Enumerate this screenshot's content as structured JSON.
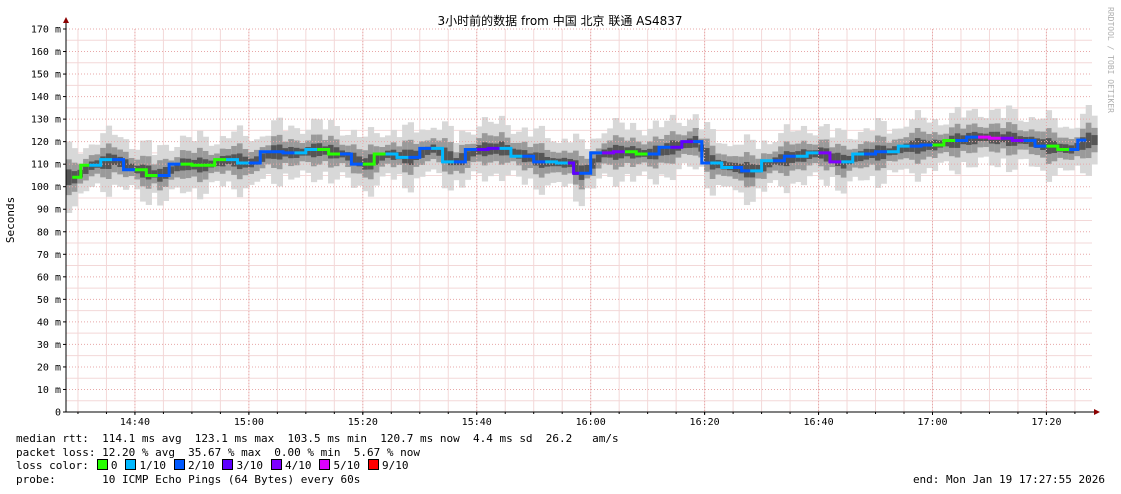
{
  "chart_data": {
    "type": "line",
    "title": "3小时前的数据 from 中国 北京 联通 AS4837",
    "ylabel": "Seconds",
    "watermark": "RRDTOOL / TOBI OETIKER",
    "ylim": [
      0,
      170
    ],
    "y_ticks": [
      "0",
      "10 m",
      "20 m",
      "30 m",
      "40 m",
      "50 m",
      "60 m",
      "70 m",
      "80 m",
      "90 m",
      "100 m",
      "110 m",
      "120 m",
      "130 m",
      "140 m",
      "150 m",
      "160 m",
      "170 m"
    ],
    "x_ticks": [
      "14:40",
      "15:00",
      "15:20",
      "15:40",
      "16:00",
      "16:20",
      "16:40",
      "17:00",
      "17:20"
    ],
    "grid": true,
    "median_rtt_ms": [
      {
        "time": "14:29",
        "value": 104.2,
        "loss": "0"
      },
      {
        "time": "14:32",
        "value": 109.5,
        "loss": "1/10"
      },
      {
        "time": "14:36",
        "value": 112.0,
        "loss": "2/10"
      },
      {
        "time": "14:40",
        "value": 107.5,
        "loss": "0"
      },
      {
        "time": "14:44",
        "value": 105.0,
        "loss": "2/10"
      },
      {
        "time": "14:48",
        "value": 110.0,
        "loss": "0"
      },
      {
        "time": "14:52",
        "value": 109.5,
        "loss": "0"
      },
      {
        "time": "14:56",
        "value": 112.0,
        "loss": "1/10"
      },
      {
        "time": "15:00",
        "value": 110.5,
        "loss": "2/10"
      },
      {
        "time": "15:04",
        "value": 115.5,
        "loss": "2/10"
      },
      {
        "time": "15:08",
        "value": 115.0,
        "loss": "1/10"
      },
      {
        "time": "15:12",
        "value": 116.5,
        "loss": "0"
      },
      {
        "time": "15:16",
        "value": 114.5,
        "loss": "2/10"
      },
      {
        "time": "15:20",
        "value": 110.0,
        "loss": "0"
      },
      {
        "time": "15:24",
        "value": 114.5,
        "loss": "1/10"
      },
      {
        "time": "15:28",
        "value": 113.0,
        "loss": "2/10"
      },
      {
        "time": "15:32",
        "value": 117.0,
        "loss": "1/10"
      },
      {
        "time": "15:36",
        "value": 111.0,
        "loss": "2/10"
      },
      {
        "time": "15:40",
        "value": 116.5,
        "loss": "3/10"
      },
      {
        "time": "15:44",
        "value": 117.0,
        "loss": "1/10"
      },
      {
        "time": "15:48",
        "value": 113.5,
        "loss": "2/10"
      },
      {
        "time": "15:52",
        "value": 111.0,
        "loss": "1/10"
      },
      {
        "time": "15:56",
        "value": 110.5,
        "loss": "3/10"
      },
      {
        "time": "15:58",
        "value": 106.0,
        "loss": "2/10"
      },
      {
        "time": "16:02",
        "value": 115.0,
        "loss": "4/10"
      },
      {
        "time": "16:06",
        "value": 115.5,
        "loss": "0"
      },
      {
        "time": "16:10",
        "value": 114.5,
        "loss": "2/10"
      },
      {
        "time": "16:14",
        "value": 117.5,
        "loss": "3/10"
      },
      {
        "time": "16:18",
        "value": 120.0,
        "loss": "2/10"
      },
      {
        "time": "16:21",
        "value": 110.5,
        "loss": "1/10"
      },
      {
        "time": "16:25",
        "value": 108.5,
        "loss": "2/10"
      },
      {
        "time": "16:28",
        "value": 107.0,
        "loss": "1/10"
      },
      {
        "time": "16:32",
        "value": 111.5,
        "loss": "2/10"
      },
      {
        "time": "16:36",
        "value": 113.5,
        "loss": "1/10"
      },
      {
        "time": "16:40",
        "value": 115.0,
        "loss": "4/10"
      },
      {
        "time": "16:44",
        "value": 111.0,
        "loss": "1/10"
      },
      {
        "time": "16:48",
        "value": 114.5,
        "loss": "2/10"
      },
      {
        "time": "16:52",
        "value": 115.5,
        "loss": "1/10"
      },
      {
        "time": "16:56",
        "value": 118.0,
        "loss": "2/10"
      },
      {
        "time": "17:00",
        "value": 118.5,
        "loss": "0"
      },
      {
        "time": "17:04",
        "value": 120.5,
        "loss": "2/10"
      },
      {
        "time": "17:08",
        "value": 122.0,
        "loss": "5/10"
      },
      {
        "time": "17:12",
        "value": 121.5,
        "loss": "4/10"
      },
      {
        "time": "17:16",
        "value": 120.5,
        "loss": "2/10"
      },
      {
        "time": "17:20",
        "value": 118.0,
        "loss": "0"
      },
      {
        "time": "17:24",
        "value": 116.5,
        "loss": "2/10"
      },
      {
        "time": "17:27",
        "value": 120.7,
        "loss": "1/10"
      }
    ]
  },
  "stats": {
    "median_rtt": "median rtt:  114.1 ms avg  123.1 ms max  103.5 ms min  120.7 ms now  4.4 ms sd  26.2   am/s",
    "packet_loss": "packet loss: 12.20 % avg  35.67 % max  0.00 % min  5.67 % now",
    "loss_color_label": "loss color:",
    "probe": "probe:       10 ICMP Echo Pings (64 Bytes) every 60s",
    "end": "end: Mon Jan 19 17:27:55 2026"
  },
  "loss_legend": [
    {
      "label": "0",
      "color": "#26ff00"
    },
    {
      "label": "1/10",
      "color": "#00b8ff"
    },
    {
      "label": "2/10",
      "color": "#0059ff"
    },
    {
      "label": "3/10",
      "color": "#5e00ff"
    },
    {
      "label": "4/10",
      "color": "#7e00ff"
    },
    {
      "label": "5/10",
      "color": "#dd00ff"
    },
    {
      "label": "9/10",
      "color": "#ff0000"
    }
  ]
}
